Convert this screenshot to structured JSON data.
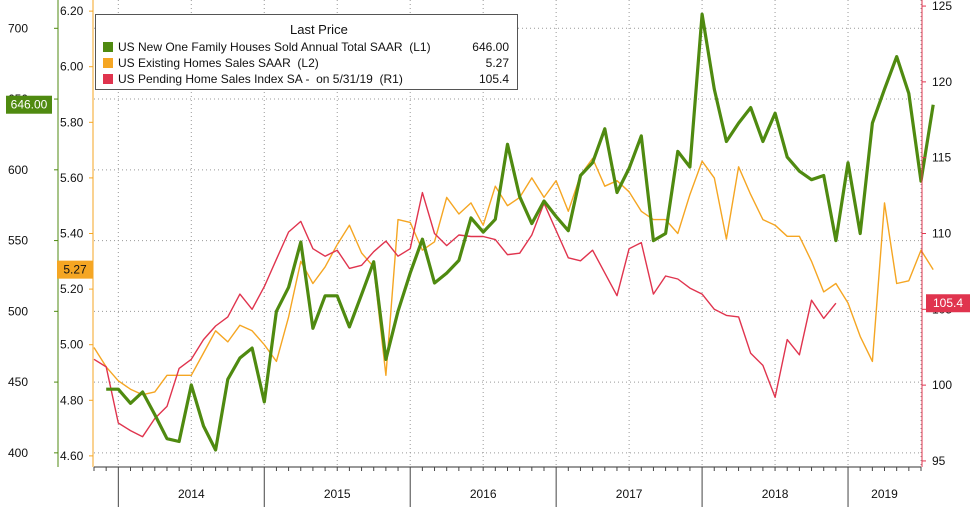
{
  "chart_data": {
    "type": "line",
    "legend": {
      "title": "Last Price",
      "placement": "top-left",
      "entries": [
        {
          "label": "US New One Family Houses Sold Annual Total SAAR  (L1)",
          "value": "646.00",
          "color": "#4f8a10"
        },
        {
          "label": "US Existing Homes Sales SAAR  (L2)",
          "value": "5.27",
          "color": "#f5a623"
        },
        {
          "label": "US Pending Home Sales Index SA -  on 5/31/19  (R1)",
          "value": "105.4",
          "color": "#e0344e"
        }
      ]
    },
    "x_axis": {
      "start": "2013-11",
      "end": "2019-07",
      "year_labels": [
        "2014",
        "2015",
        "2016",
        "2017",
        "2018",
        "2019"
      ]
    },
    "axes": {
      "L1": {
        "ticks": [
          "400",
          "450",
          "500",
          "550",
          "600",
          "650",
          "700"
        ],
        "ylim": [
          390,
          720
        ],
        "color": "#4f8a10"
      },
      "L2": {
        "ticks": [
          "4.60",
          "4.80",
          "5.00",
          "5.20",
          "5.40",
          "5.60",
          "5.80",
          "6.00",
          "6.20"
        ],
        "ylim": [
          4.56,
          6.24
        ],
        "color": "#f5a623"
      },
      "R1": {
        "ticks": [
          "95",
          "100",
          "105",
          "110",
          "115",
          "120",
          "125"
        ],
        "ylim": [
          94.6,
          125.4
        ],
        "color": "#e0344e"
      }
    },
    "last_value_tags": {
      "L1": "646.00",
      "L2": "5.27",
      "R1": "105.4"
    },
    "series": [
      {
        "name": "US New One Family Houses Sold Annual Total SAAR  (L1)",
        "axis": "L1",
        "color": "#4f8a10",
        "width": 3.2,
        "start": "2013-12",
        "values": [
          445,
          445,
          435,
          443,
          427,
          410,
          408,
          448,
          419,
          402,
          452,
          467,
          474,
          436,
          500,
          517,
          549,
          488,
          511,
          511,
          489,
          512,
          535,
          466,
          500,
          527,
          551,
          520,
          527,
          536,
          566,
          556,
          565,
          618,
          581,
          562,
          578,
          567,
          557,
          596,
          605,
          629,
          584,
          601,
          624,
          550,
          555,
          613,
          602,
          710,
          657,
          620,
          633,
          644,
          620,
          640,
          609,
          599,
          593,
          596,
          550,
          605,
          555,
          633,
          657,
          680,
          654,
          592,
          646
        ]
      },
      {
        "name": "US Existing Homes Sales SAAR  (L2)",
        "axis": "L2",
        "color": "#f5a623",
        "width": 1.4,
        "start": "2013-11",
        "values": [
          4.99,
          4.92,
          4.87,
          4.84,
          4.82,
          4.83,
          4.89,
          4.89,
          4.89,
          4.97,
          5.05,
          5.01,
          5.07,
          5.05,
          5.0,
          4.94,
          5.1,
          5.3,
          5.22,
          5.28,
          5.36,
          5.43,
          5.33,
          5.28,
          4.89,
          5.45,
          5.44,
          5.34,
          5.37,
          5.53,
          5.47,
          5.51,
          5.43,
          5.57,
          5.5,
          5.53,
          5.6,
          5.53,
          5.59,
          5.48,
          5.61,
          5.67,
          5.57,
          5.59,
          5.55,
          5.48,
          5.45,
          5.45,
          5.4,
          5.54,
          5.66,
          5.6,
          5.38,
          5.64,
          5.54,
          5.45,
          5.43,
          5.39,
          5.39,
          5.3,
          5.19,
          5.22,
          5.15,
          5.03,
          4.94,
          5.51,
          5.22,
          5.23,
          5.34,
          5.27
        ]
      },
      {
        "name": "US Pending Home Sales Index SA -  on 5/31/19  (R1)",
        "axis": "R1",
        "color": "#e0344e",
        "width": 1.4,
        "start": "2013-11",
        "values": [
          101.7,
          101.2,
          97.5,
          97.0,
          96.6,
          97.8,
          98.6,
          101.1,
          101.7,
          103.0,
          103.9,
          104.5,
          106.0,
          105.0,
          106.5,
          108.3,
          110.1,
          110.8,
          109.0,
          108.5,
          108.9,
          107.7,
          107.9,
          108.8,
          109.5,
          108.5,
          109.0,
          112.7,
          110.0,
          109.2,
          109.9,
          109.8,
          109.8,
          109.6,
          108.6,
          108.7,
          109.9,
          112.0,
          110.2,
          108.4,
          108.2,
          108.9,
          107.4,
          105.9,
          109.0,
          109.4,
          106.0,
          107.2,
          107.0,
          106.4,
          106.0,
          105.0,
          104.6,
          104.5,
          102.1,
          101.3,
          99.2,
          103.0,
          102.0,
          105.6,
          104.4,
          105.4
        ]
      }
    ]
  }
}
